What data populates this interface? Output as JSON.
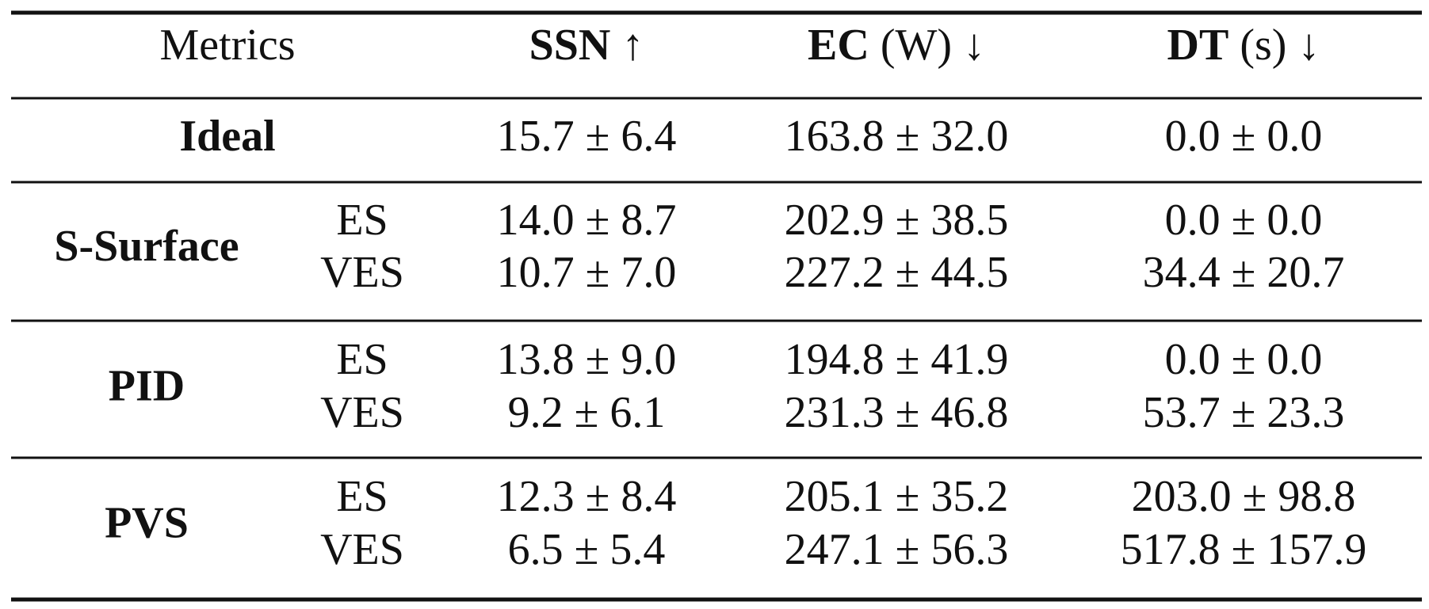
{
  "table": {
    "header": [
      {
        "text": "Metrics"
      },
      {
        "bold": "SSN",
        "text": "↑"
      },
      {
        "bold": "EC",
        "text": "(W) ↓"
      },
      {
        "bold": "DT",
        "text": "(s) ↓"
      }
    ],
    "groups": [
      {
        "name": "Ideal",
        "rows": [
          {
            "values": [
              "15.7 ± 6.4",
              "163.8 ± 32.0",
              "0.0 ± 0.0"
            ]
          }
        ]
      },
      {
        "name": "S-Surface",
        "rows": [
          {
            "label": "ES",
            "values": [
              "14.0 ± 8.7",
              "202.9 ± 38.5",
              "0.0 ± 0.0"
            ]
          },
          {
            "label": "VES",
            "values": [
              "10.7 ± 7.0",
              "227.2 ± 44.5",
              "34.4 ± 20.7"
            ]
          }
        ]
      },
      {
        "name": "PID",
        "rows": [
          {
            "label": "ES",
            "values": [
              "13.8 ± 9.0",
              "194.8 ± 41.9",
              "0.0 ± 0.0"
            ]
          },
          {
            "label": "VES",
            "values": [
              "9.2 ± 6.1",
              "231.3 ± 46.8",
              "53.7 ± 23.3"
            ]
          }
        ]
      },
      {
        "name": "PVS",
        "rows": [
          {
            "label": "ES",
            "values": [
              "12.3 ± 8.4",
              "205.1 ± 35.2",
              "203.0 ± 98.8"
            ]
          },
          {
            "label": "VES",
            "values": [
              "6.5 ± 5.4",
              "247.1 ± 56.3",
              "517.8 ± 157.9"
            ]
          }
        ]
      }
    ]
  }
}
